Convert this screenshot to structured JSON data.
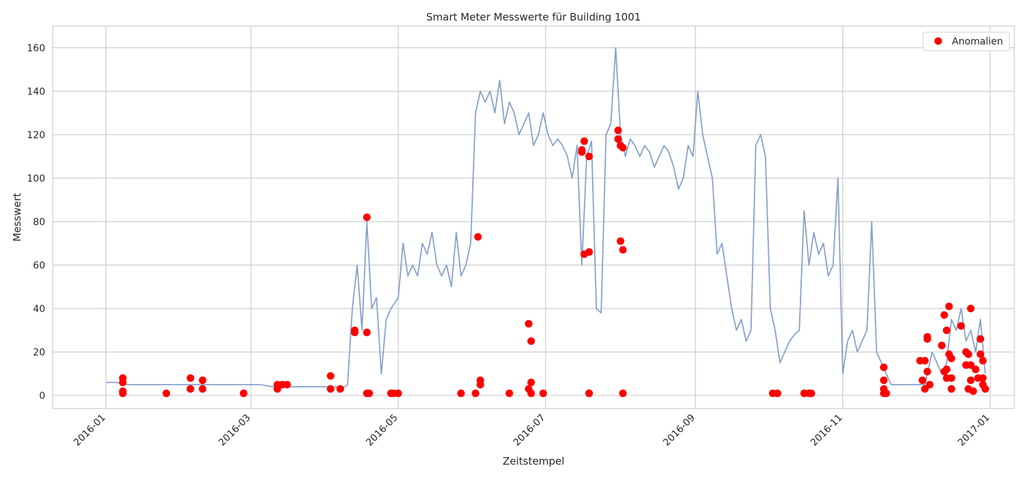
{
  "chart_data": {
    "type": "line",
    "title": "Smart Meter Messwerte für Building 1001",
    "xlabel": "Zeitstempel",
    "ylabel": "Messwert",
    "xlim": [
      "2015-12-10",
      "2017-01-11"
    ],
    "ylim": [
      -6,
      170
    ],
    "grid": true,
    "legend_position": "top-right",
    "x_ticks": [
      "2016-01",
      "2016-03",
      "2016-05",
      "2016-07",
      "2016-09",
      "2016-11",
      "2017-01"
    ],
    "y_ticks": [
      0,
      20,
      40,
      60,
      80,
      100,
      120,
      140,
      160
    ],
    "series": [
      {
        "name": "",
        "color": "#7f9cc8",
        "x": [
          "2016-01-01",
          "2016-01-05",
          "2016-01-10",
          "2016-01-20",
          "2016-01-25",
          "2016-02-01",
          "2016-02-05",
          "2016-02-10",
          "2016-02-20",
          "2016-02-27",
          "2016-03-05",
          "2016-03-10",
          "2016-03-15",
          "2016-03-20",
          "2016-03-25",
          "2016-04-01",
          "2016-04-05",
          "2016-04-09",
          "2016-04-10",
          "2016-04-12",
          "2016-04-14",
          "2016-04-16",
          "2016-04-18",
          "2016-04-20",
          "2016-04-22",
          "2016-04-24",
          "2016-04-26",
          "2016-04-28",
          "2016-05-01",
          "2016-05-03",
          "2016-05-05",
          "2016-05-07",
          "2016-05-09",
          "2016-05-11",
          "2016-05-13",
          "2016-05-15",
          "2016-05-17",
          "2016-05-19",
          "2016-05-21",
          "2016-05-23",
          "2016-05-25",
          "2016-05-27",
          "2016-05-29",
          "2016-05-31",
          "2016-06-02",
          "2016-06-04",
          "2016-06-06",
          "2016-06-08",
          "2016-06-10",
          "2016-06-12",
          "2016-06-14",
          "2016-06-16",
          "2016-06-18",
          "2016-06-20",
          "2016-06-22",
          "2016-06-24",
          "2016-06-26",
          "2016-06-28",
          "2016-06-30",
          "2016-07-02",
          "2016-07-04",
          "2016-07-06",
          "2016-07-08",
          "2016-07-10",
          "2016-07-12",
          "2016-07-14",
          "2016-07-16",
          "2016-07-18",
          "2016-07-20",
          "2016-07-22",
          "2016-07-24",
          "2016-07-26",
          "2016-07-28",
          "2016-07-30",
          "2016-08-01",
          "2016-08-03",
          "2016-08-05",
          "2016-08-07",
          "2016-08-09",
          "2016-08-11",
          "2016-08-13",
          "2016-08-15",
          "2016-08-17",
          "2016-08-19",
          "2016-08-21",
          "2016-08-23",
          "2016-08-25",
          "2016-08-27",
          "2016-08-29",
          "2016-08-31",
          "2016-09-02",
          "2016-09-04",
          "2016-09-06",
          "2016-09-08",
          "2016-09-10",
          "2016-09-12",
          "2016-09-14",
          "2016-09-16",
          "2016-09-18",
          "2016-09-20",
          "2016-09-22",
          "2016-09-24",
          "2016-09-26",
          "2016-09-28",
          "2016-09-30",
          "2016-10-02",
          "2016-10-04",
          "2016-10-06",
          "2016-10-08",
          "2016-10-10",
          "2016-10-12",
          "2016-10-14",
          "2016-10-16",
          "2016-10-18",
          "2016-10-20",
          "2016-10-22",
          "2016-10-24",
          "2016-10-26",
          "2016-10-28",
          "2016-10-30",
          "2016-11-01",
          "2016-11-03",
          "2016-11-05",
          "2016-11-07",
          "2016-11-09",
          "2016-11-11",
          "2016-11-13",
          "2016-11-15",
          "2016-11-17",
          "2016-11-19",
          "2016-11-21",
          "2016-11-25",
          "2016-11-30",
          "2016-12-05",
          "2016-12-08",
          "2016-12-10",
          "2016-12-12",
          "2016-12-14",
          "2016-12-16",
          "2016-12-18",
          "2016-12-20",
          "2016-12-22",
          "2016-12-24",
          "2016-12-26",
          "2016-12-28",
          "2016-12-30"
        ],
        "y": [
          6,
          6,
          5,
          5,
          5,
          5,
          5,
          5,
          5,
          5,
          5,
          4,
          4,
          4,
          4,
          4,
          4,
          4,
          5,
          40,
          60,
          30,
          80,
          40,
          45,
          10,
          35,
          40,
          45,
          70,
          55,
          60,
          55,
          70,
          65,
          75,
          60,
          55,
          60,
          50,
          75,
          55,
          60,
          70,
          130,
          140,
          135,
          140,
          130,
          145,
          125,
          135,
          130,
          120,
          125,
          130,
          115,
          120,
          130,
          120,
          115,
          118,
          115,
          110,
          100,
          115,
          60,
          110,
          117,
          40,
          38,
          120,
          125,
          160,
          120,
          110,
          118,
          115,
          110,
          115,
          112,
          105,
          110,
          115,
          112,
          105,
          95,
          100,
          115,
          110,
          140,
          120,
          110,
          100,
          65,
          70,
          55,
          40,
          30,
          35,
          25,
          30,
          115,
          120,
          110,
          40,
          30,
          15,
          20,
          25,
          28,
          30,
          85,
          60,
          75,
          65,
          70,
          55,
          60,
          100,
          10,
          25,
          30,
          20,
          25,
          30,
          80,
          20,
          15,
          10,
          5,
          5,
          5,
          5,
          20,
          15,
          10,
          15,
          35,
          30,
          40,
          25,
          30,
          20,
          35,
          10
        ]
      },
      {
        "name": "Anomalien",
        "color": "#ff0000",
        "x": [
          "2016-01-08",
          "2016-01-08",
          "2016-01-08",
          "2016-01-08",
          "2016-01-26",
          "2016-02-05",
          "2016-02-05",
          "2016-02-10",
          "2016-02-10",
          "2016-02-27",
          "2016-03-12",
          "2016-03-12",
          "2016-03-14",
          "2016-03-16",
          "2016-04-03",
          "2016-04-03",
          "2016-04-07",
          "2016-04-13",
          "2016-04-13",
          "2016-04-18",
          "2016-04-18",
          "2016-04-18",
          "2016-04-19",
          "2016-04-28",
          "2016-04-29",
          "2016-05-01",
          "2016-05-27",
          "2016-06-02",
          "2016-06-03",
          "2016-06-04",
          "2016-06-04",
          "2016-06-16",
          "2016-06-24",
          "2016-06-24",
          "2016-06-25",
          "2016-06-25",
          "2016-06-25",
          "2016-06-30",
          "2016-07-16",
          "2016-07-16",
          "2016-07-17",
          "2016-07-17",
          "2016-07-19",
          "2016-07-19",
          "2016-07-19",
          "2016-07-19",
          "2016-07-31",
          "2016-07-31",
          "2016-08-01",
          "2016-08-01",
          "2016-08-02",
          "2016-08-02",
          "2016-08-02",
          "2016-10-03",
          "2016-10-05",
          "2016-10-16",
          "2016-10-18",
          "2016-10-19",
          "2016-11-18",
          "2016-11-18",
          "2016-11-18",
          "2016-11-18",
          "2016-11-19",
          "2016-12-03",
          "2016-12-04",
          "2016-12-05",
          "2016-12-05",
          "2016-12-06",
          "2016-12-06",
          "2016-12-06",
          "2016-12-07",
          "2016-12-12",
          "2016-12-13",
          "2016-12-13",
          "2016-12-14",
          "2016-12-14",
          "2016-12-14",
          "2016-12-15",
          "2016-12-15",
          "2016-12-16",
          "2016-12-16",
          "2016-12-16",
          "2016-12-20",
          "2016-12-22",
          "2016-12-22",
          "2016-12-23",
          "2016-12-23",
          "2016-12-24",
          "2016-12-24",
          "2016-12-24",
          "2016-12-25",
          "2016-12-26",
          "2016-12-27",
          "2016-12-28",
          "2016-12-28",
          "2016-12-29",
          "2016-12-29",
          "2016-12-29",
          "2016-12-30"
        ],
        "y": [
          8,
          6,
          2,
          1,
          1,
          8,
          3,
          7,
          3,
          1,
          5,
          3,
          5,
          5,
          9,
          3,
          3,
          30,
          29,
          82,
          29,
          1,
          1,
          1,
          1,
          1,
          1,
          1,
          73,
          7,
          5,
          1,
          33,
          3,
          25,
          6,
          1,
          1,
          113,
          112,
          65,
          117,
          110,
          66,
          1,
          1,
          122,
          118,
          71,
          115,
          114,
          67,
          1,
          1,
          1,
          1,
          1,
          1,
          13,
          7,
          3,
          1,
          1,
          16,
          7,
          3,
          16,
          11,
          27,
          26,
          5,
          23,
          11,
          37,
          30,
          12,
          8,
          41,
          19,
          17,
          8,
          3,
          32,
          20,
          14,
          19,
          3,
          40,
          14,
          7,
          2,
          12,
          8,
          26,
          19,
          16,
          8,
          5,
          3
        ]
      }
    ]
  }
}
